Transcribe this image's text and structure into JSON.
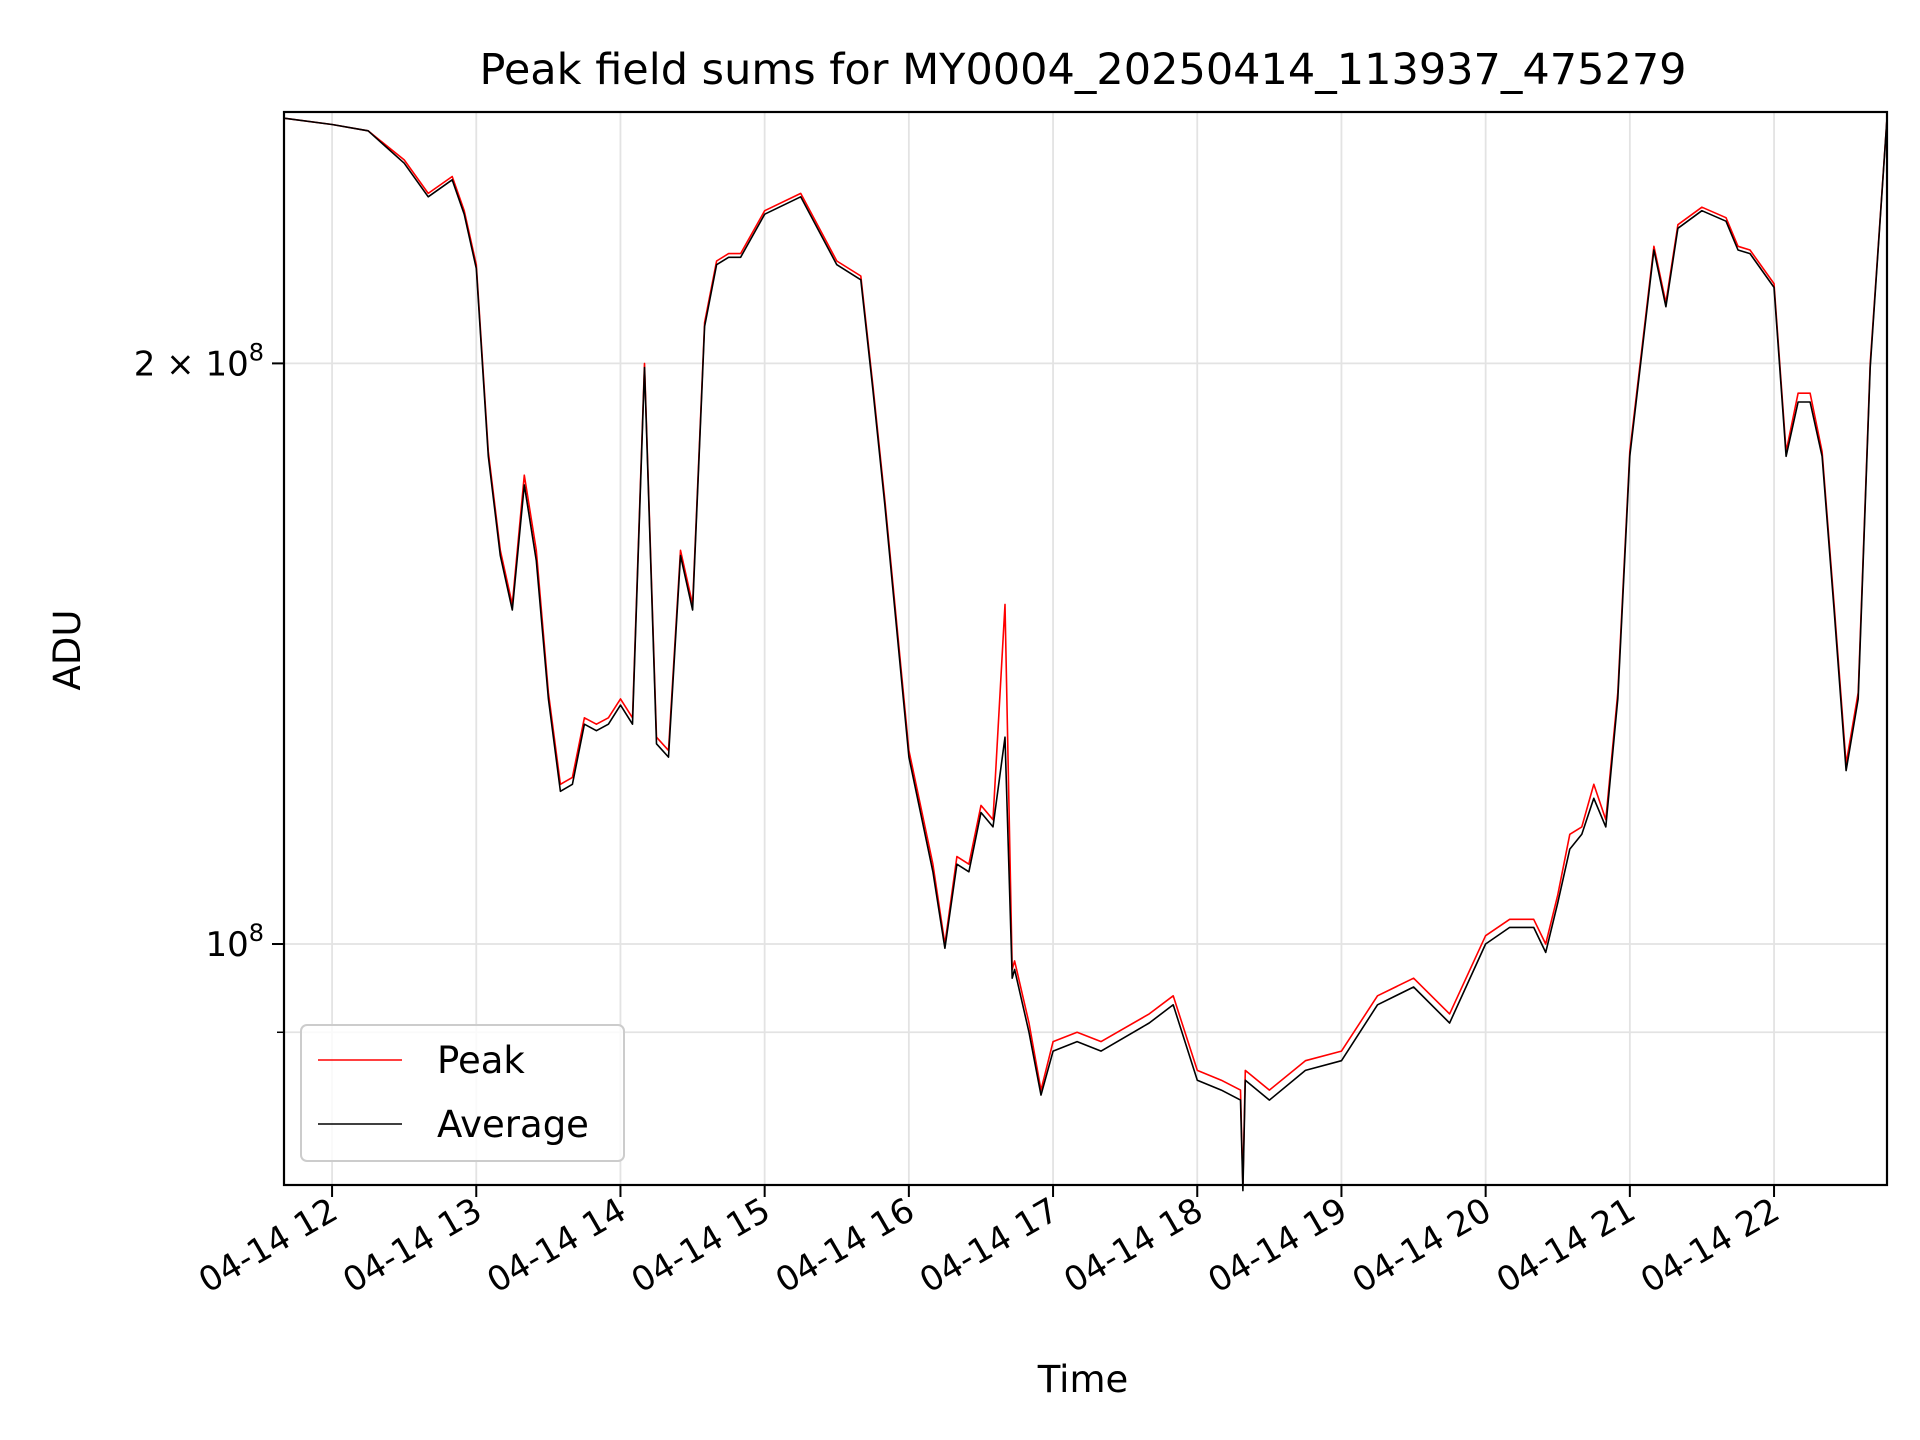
{
  "chart_data": {
    "type": "line",
    "title": "Peak field sums for MY0004_20250414_113937_475279",
    "xlabel": "Time",
    "ylabel": "ADU",
    "yscale": "log",
    "ylim": [
      75000000,
      270000000
    ],
    "xlim": [
      "2025-04-14 11:40",
      "2025-04-14 22:47"
    ],
    "grid": true,
    "legend_position": "lower-left",
    "x_ticks": [
      {
        "value": "2025-04-14 12:00",
        "label": "04-14 12"
      },
      {
        "value": "2025-04-14 13:00",
        "label": "04-14 13"
      },
      {
        "value": "2025-04-14 14:00",
        "label": "04-14 14"
      },
      {
        "value": "2025-04-14 15:00",
        "label": "04-14 15"
      },
      {
        "value": "2025-04-14 16:00",
        "label": "04-14 16"
      },
      {
        "value": "2025-04-14 17:00",
        "label": "04-14 17"
      },
      {
        "value": "2025-04-14 18:00",
        "label": "04-14 18"
      },
      {
        "value": "2025-04-14 19:00",
        "label": "04-14 19"
      },
      {
        "value": "2025-04-14 20:00",
        "label": "04-14 20"
      },
      {
        "value": "2025-04-14 21:00",
        "label": "04-14 21"
      },
      {
        "value": "2025-04-14 22:00",
        "label": "04-14 22"
      }
    ],
    "y_ticks": [
      {
        "value": 100000000,
        "mantissa": "",
        "base": "10",
        "exp": "8"
      },
      {
        "value": 200000000,
        "mantissa": "2 × ",
        "base": "10",
        "exp": "8"
      }
    ],
    "y_minor_ticks": [
      90000000
    ],
    "x": [
      "2025-04-14 11:40",
      "2025-04-14 12:00",
      "2025-04-14 12:15",
      "2025-04-14 12:30",
      "2025-04-14 12:40",
      "2025-04-14 12:50",
      "2025-04-14 12:55",
      "2025-04-14 13:00",
      "2025-04-14 13:05",
      "2025-04-14 13:10",
      "2025-04-14 13:15",
      "2025-04-14 13:20",
      "2025-04-14 13:25",
      "2025-04-14 13:30",
      "2025-04-14 13:35",
      "2025-04-14 13:40",
      "2025-04-14 13:45",
      "2025-04-14 13:50",
      "2025-04-14 13:55",
      "2025-04-14 14:00",
      "2025-04-14 14:05",
      "2025-04-14 14:10",
      "2025-04-14 14:15",
      "2025-04-14 14:20",
      "2025-04-14 14:25",
      "2025-04-14 14:30",
      "2025-04-14 14:35",
      "2025-04-14 14:40",
      "2025-04-14 14:45",
      "2025-04-14 14:50",
      "2025-04-14 15:00",
      "2025-04-14 15:15",
      "2025-04-14 15:30",
      "2025-04-14 15:40",
      "2025-04-14 15:45",
      "2025-04-14 15:50",
      "2025-04-14 16:00",
      "2025-04-14 16:10",
      "2025-04-14 16:15",
      "2025-04-14 16:20",
      "2025-04-14 16:25",
      "2025-04-14 16:30",
      "2025-04-14 16:35",
      "2025-04-14 16:40",
      "2025-04-14 16:43",
      "2025-04-14 16:44",
      "2025-04-14 16:50",
      "2025-04-14 16:55",
      "2025-04-14 17:00",
      "2025-04-14 17:10",
      "2025-04-14 17:20",
      "2025-04-14 17:40",
      "2025-04-14 17:50",
      "2025-04-14 18:00",
      "2025-04-14 18:10",
      "2025-04-14 18:18",
      "2025-04-14 18:19",
      "2025-04-14 18:20",
      "2025-04-14 18:30",
      "2025-04-14 18:45",
      "2025-04-14 19:00",
      "2025-04-14 19:15",
      "2025-04-14 19:30",
      "2025-04-14 19:45",
      "2025-04-14 20:00",
      "2025-04-14 20:10",
      "2025-04-14 20:20",
      "2025-04-14 20:25",
      "2025-04-14 20:30",
      "2025-04-14 20:35",
      "2025-04-14 20:40",
      "2025-04-14 20:45",
      "2025-04-14 20:50",
      "2025-04-14 20:55",
      "2025-04-14 21:00",
      "2025-04-14 21:10",
      "2025-04-14 21:15",
      "2025-04-14 21:20",
      "2025-04-14 21:30",
      "2025-04-14 21:40",
      "2025-04-14 21:45",
      "2025-04-14 21:50",
      "2025-04-14 22:00",
      "2025-04-14 22:05",
      "2025-04-14 22:10",
      "2025-04-14 22:15",
      "2025-04-14 22:20",
      "2025-04-14 22:25",
      "2025-04-14 22:30",
      "2025-04-14 22:35",
      "2025-04-14 22:40",
      "2025-04-14 22:47"
    ],
    "series": [
      {
        "name": "Peak",
        "color": "#ff0000",
        "values": [
          268000000,
          266000000,
          264000000,
          255000000,
          245000000,
          250000000,
          240000000,
          225000000,
          180000000,
          160000000,
          150000000,
          175000000,
          160000000,
          135000000,
          121000000,
          122000000,
          131000000,
          130000000,
          131000000,
          134000000,
          131000000,
          200000000,
          128000000,
          126000000,
          160000000,
          150000000,
          210000000,
          226000000,
          228000000,
          228000000,
          240000000,
          245000000,
          226000000,
          222000000,
          195000000,
          170000000,
          126000000,
          110000000,
          100000000,
          111000000,
          110000000,
          118000000,
          116000000,
          150000000,
          97000000,
          98000000,
          91000000,
          84000000,
          89000000,
          90000000,
          89000000,
          92000000,
          94000000,
          86000000,
          85000000,
          84000000,
          75000000,
          86000000,
          84000000,
          87000000,
          88000000,
          94000000,
          96000000,
          92000000,
          101000000,
          103000000,
          103000000,
          100000000,
          106000000,
          114000000,
          115000000,
          121000000,
          116000000,
          135000000,
          180000000,
          230000000,
          215000000,
          236000000,
          241000000,
          238000000,
          230000000,
          229000000,
          220000000,
          180000000,
          193000000,
          193000000,
          180000000,
          150000000,
          124000000,
          135000000,
          200000000,
          268000000
        ]
      },
      {
        "name": "Average",
        "color": "#000000",
        "values": [
          268000000,
          266000000,
          264000000,
          254000000,
          244000000,
          249000000,
          239000000,
          224000000,
          179000000,
          159000000,
          149000000,
          173000000,
          158000000,
          134000000,
          120000000,
          121000000,
          130000000,
          129000000,
          130000000,
          133000000,
          130000000,
          199000000,
          127000000,
          125000000,
          159000000,
          149000000,
          209000000,
          225000000,
          227000000,
          227000000,
          239000000,
          244000000,
          225000000,
          221000000,
          194000000,
          169000000,
          125000000,
          109000000,
          99500000,
          110000000,
          109000000,
          117000000,
          115000000,
          128000000,
          96000000,
          97000000,
          90000000,
          83500000,
          88000000,
          89000000,
          88000000,
          91000000,
          93000000,
          85000000,
          84000000,
          83000000,
          74500000,
          85000000,
          83000000,
          86000000,
          87000000,
          93000000,
          95000000,
          91000000,
          100000000,
          102000000,
          102000000,
          99000000,
          105000000,
          112000000,
          114000000,
          119000000,
          115000000,
          134000000,
          179000000,
          229000000,
          214000000,
          235000000,
          240000000,
          237000000,
          229000000,
          228000000,
          219000000,
          179000000,
          191000000,
          191000000,
          179000000,
          149000000,
          123000000,
          134000000,
          199000000,
          268000000
        ]
      }
    ]
  },
  "legend": {
    "items": [
      {
        "label": "Peak",
        "color": "#ff0000"
      },
      {
        "label": "Average",
        "color": "#000000"
      }
    ]
  }
}
